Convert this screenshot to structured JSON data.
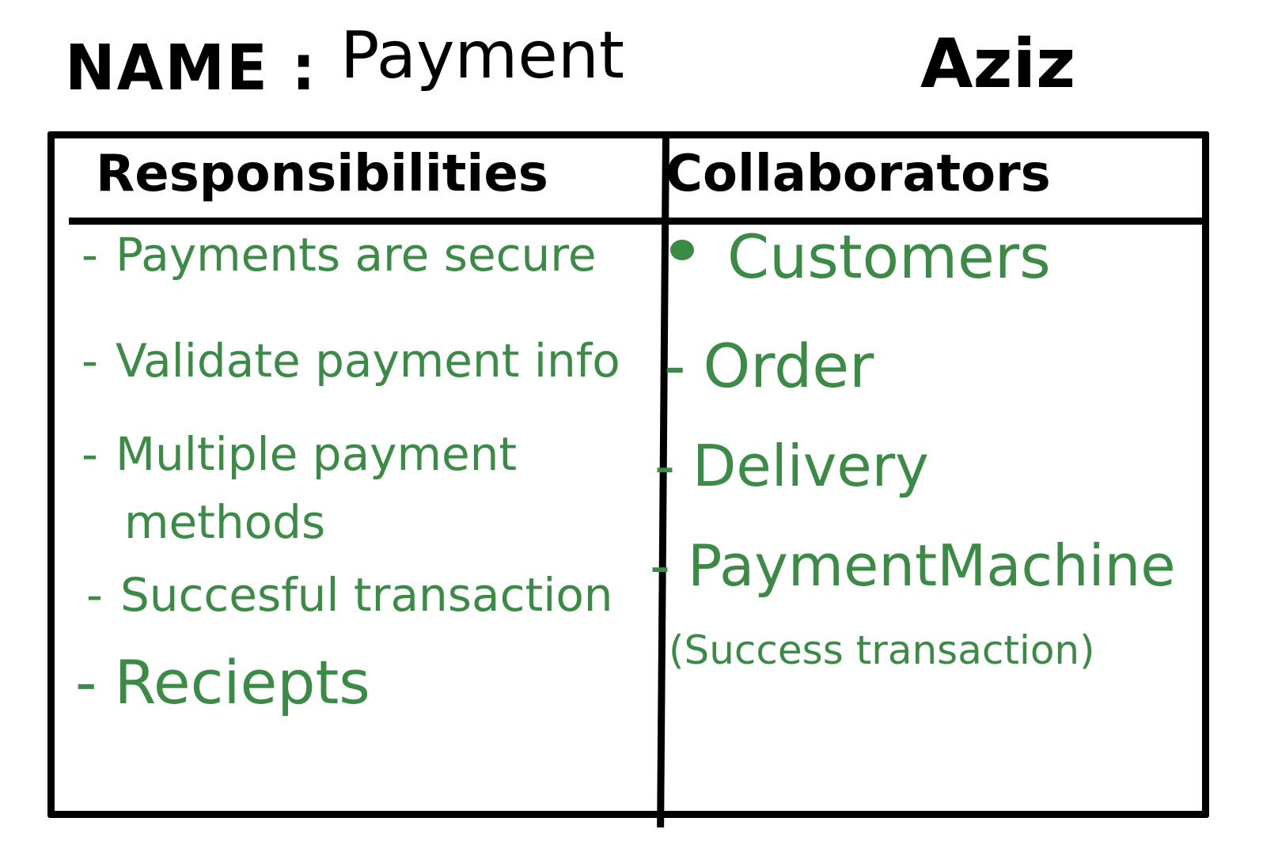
{
  "header": {
    "name_label": "NAME :",
    "name_value": "Payment",
    "author": "Aziz"
  },
  "card": {
    "responsibilities_title": "Responsibilities",
    "collaborators_title": "Collaborators",
    "responsibilities": [
      {
        "bullet": "-",
        "text": "Payments are secure"
      },
      {
        "bullet": "-",
        "text": "Validate payment info"
      },
      {
        "bullet": "-",
        "text": "Multiple payment"
      },
      {
        "bullet": "",
        "text": "methods"
      },
      {
        "bullet": "-",
        "text": "Succesful transaction"
      },
      {
        "bullet": "-",
        "text": "Reciepts"
      }
    ],
    "collaborators": [
      {
        "bullet": "•",
        "text": "Customers"
      },
      {
        "bullet": "-",
        "text": "Order"
      },
      {
        "bullet": "-",
        "text": "Delivery"
      },
      {
        "bullet": "-",
        "text": "PaymentMachine"
      },
      {
        "bullet": "",
        "text": "(Success transaction)"
      }
    ]
  },
  "colors": {
    "ink": "#000000",
    "green_ink": "#3b8a45",
    "background": "#ffffff"
  }
}
